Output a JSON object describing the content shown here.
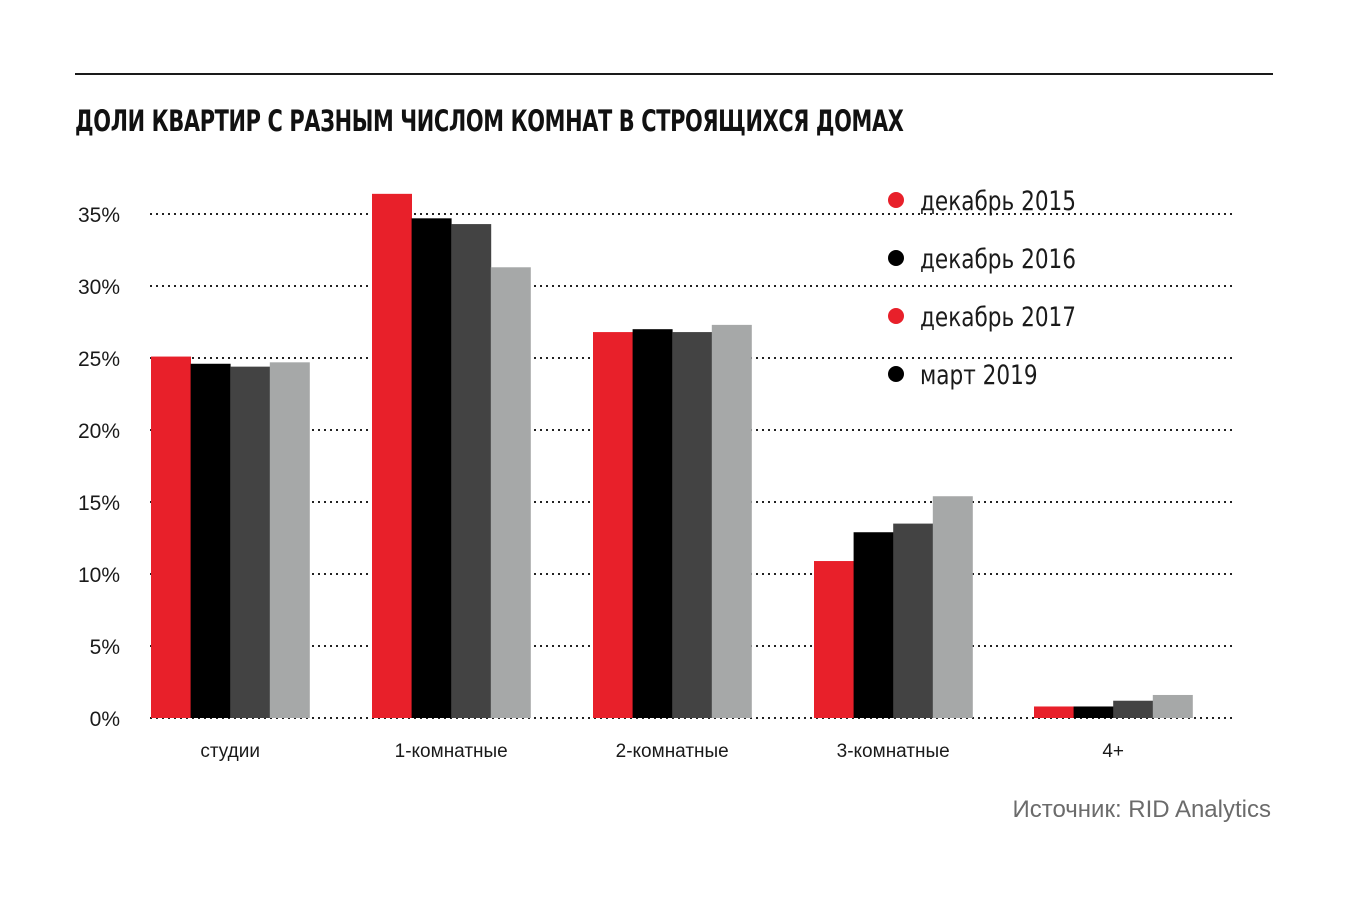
{
  "chart_data": {
    "type": "bar",
    "title": "ДОЛИ КВАРТИР С РАЗНЫМ ЧИСЛОМ КОМНАТ В СТРОЯЩИХСЯ ДОМАХ",
    "xlabel": "",
    "ylabel": "",
    "ylim": [
      0,
      35
    ],
    "yticks": [
      "0%",
      "5%",
      "10%",
      "15%",
      "20%",
      "25%",
      "30%",
      "35%"
    ],
    "ytick_values": [
      0,
      5,
      10,
      15,
      20,
      25,
      30,
      35
    ],
    "grid": true,
    "legend_position": "top-right",
    "categories": [
      "студии",
      "1-комнатные",
      "2-комнатные",
      "3-комнатные",
      "4+"
    ],
    "series": [
      {
        "name": "декабрь 2015",
        "color": "#e8202a",
        "legend_color": "#e8202a",
        "values": [
          25.1,
          36.4,
          26.8,
          10.9,
          0.8
        ]
      },
      {
        "name": "декабрь 2016",
        "color": "#000000",
        "legend_color": "#000000",
        "values": [
          24.6,
          34.7,
          27.0,
          12.9,
          0.8
        ]
      },
      {
        "name": "декабрь 2017",
        "color": "#434343",
        "legend_color": "#e8202a",
        "values": [
          24.4,
          34.3,
          26.8,
          13.5,
          1.2
        ]
      },
      {
        "name": "март 2019",
        "color": "#a6a8a8",
        "legend_color": "#000000",
        "values": [
          24.7,
          31.3,
          27.3,
          15.4,
          1.6
        ]
      }
    ]
  },
  "source": "Источник: RID Analytics"
}
